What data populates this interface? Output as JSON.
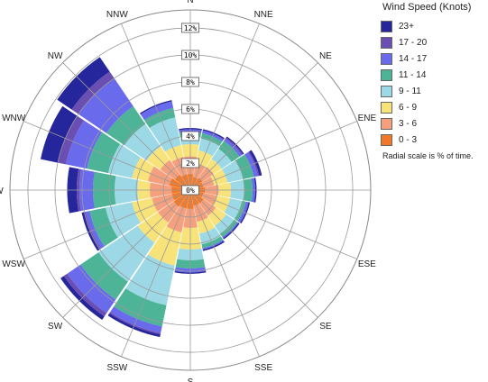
{
  "chart_data": {
    "type": "wind_rose",
    "title": "",
    "directions": [
      "N",
      "NNE",
      "NE",
      "ENE",
      "E",
      "ESE",
      "SE",
      "SSE",
      "S",
      "SSW",
      "SW",
      "WSW",
      "W",
      "WNW",
      "NW",
      "NNW"
    ],
    "radial_ticks": [
      "0%",
      "2%",
      "4%",
      "6%",
      "8%",
      "10%",
      "12%"
    ],
    "radial_max": 13.33,
    "radial_unit": "% of time",
    "series": [
      {
        "name": "0 - 3",
        "color": "#F07828",
        "values": [
          1.2,
          1.0,
          1.1,
          1.0,
          1.1,
          1.0,
          1.2,
          1.2,
          1.4,
          1.4,
          1.5,
          1.4,
          1.4,
          1.6,
          1.4,
          1.2
        ]
      },
      {
        "name": "3 - 6",
        "color": "#F4A07E",
        "values": [
          1.3,
          1.0,
          1.0,
          0.8,
          1.0,
          1.0,
          1.1,
          1.2,
          1.4,
          1.8,
          1.4,
          1.5,
          1.6,
          1.6,
          1.3,
          1.3
        ]
      },
      {
        "name": "6 - 9",
        "color": "#F8E27A",
        "values": [
          0.9,
          1.0,
          0.7,
          1.0,
          0.9,
          1.0,
          0.9,
          0.9,
          1.6,
          2.5,
          1.8,
          1.5,
          0.9,
          1.2,
          1.2,
          0.9
        ]
      },
      {
        "name": "9 - 11",
        "color": "#9DD8E6",
        "values": [
          0.6,
          0.9,
          0.9,
          1.2,
          1.0,
          0.9,
          0.7,
          0.8,
          0.8,
          3.0,
          3.5,
          2.0,
          1.7,
          1.8,
          2.0,
          2.1
        ]
      },
      {
        "name": "11 - 14",
        "color": "#4DB497",
        "values": [
          0.3,
          0.4,
          0.7,
          0.8,
          0.6,
          0.3,
          0.3,
          0.3,
          0.6,
          1.6,
          1.6,
          1.2,
          1.6,
          1.6,
          1.6,
          0.7
        ]
      },
      {
        "name": "14 - 17",
        "color": "#6A6AEC",
        "values": [
          0.2,
          0.2,
          0.2,
          0.3,
          0.2,
          0.2,
          0.1,
          0.1,
          0.3,
          0.5,
          1.2,
          0.3,
          1.0,
          1.6,
          2.5,
          0.5
        ]
      },
      {
        "name": "17 - 20",
        "color": "#6A4EB2",
        "values": [
          0.0,
          0.0,
          0.1,
          0.1,
          0.0,
          0.0,
          0.0,
          0.0,
          0.0,
          0.1,
          0.3,
          0.1,
          0.2,
          0.6,
          0.6,
          0.0
        ]
      },
      {
        "name": "23+",
        "color": "#26269C",
        "values": [
          0.1,
          0.1,
          0.1,
          0.2,
          0.1,
          0.1,
          0.1,
          0.1,
          0.1,
          0.2,
          0.3,
          0.2,
          0.7,
          1.3,
          1.3,
          0.1
        ]
      }
    ]
  },
  "legend": {
    "title": "Wind Speed (Knots)",
    "items": [
      {
        "label": "23+",
        "color": "#26269C"
      },
      {
        "label": "17 - 20",
        "color": "#6A4EB2"
      },
      {
        "label": "14 - 17",
        "color": "#6A6AEC"
      },
      {
        "label": "11 - 14",
        "color": "#4DB497"
      },
      {
        "label": "9 - 11",
        "color": "#9DD8E6"
      },
      {
        "label": "6 - 9",
        "color": "#F8E27A"
      },
      {
        "label": "3 - 6",
        "color": "#F4A07E"
      },
      {
        "label": "0 - 3",
        "color": "#F07828"
      }
    ],
    "note": "Radial scale is % of time."
  }
}
